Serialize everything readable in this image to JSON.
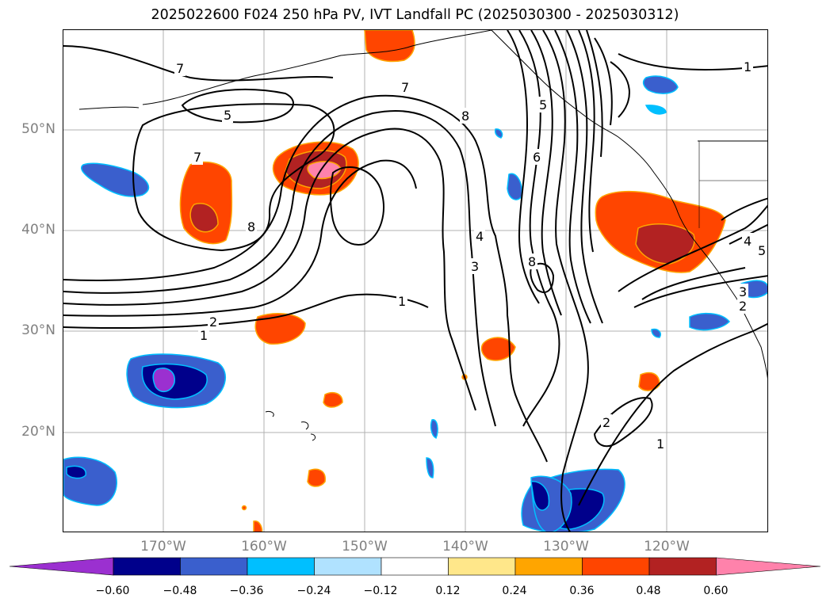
{
  "title": "2025022600 F024 250 hPa PV, IVT Landfall PC (2025030300 - 2025030312)",
  "lat_labels": [
    "50°N",
    "40°N",
    "30°N",
    "20°N"
  ],
  "lon_labels": [
    "170°W",
    "160°W",
    "150°W",
    "140°W",
    "130°W",
    "120°W"
  ],
  "contour_labels": [
    "7",
    "5",
    "7",
    "8",
    "2",
    "1",
    "7",
    "8",
    "5",
    "6",
    "4",
    "3",
    "8",
    "1",
    "1",
    "3",
    "2",
    "4",
    "5",
    "2",
    "1"
  ],
  "colorbar": {
    "colors": [
      "#9b30d0",
      "#00008b",
      "#3a5fcd",
      "#00bfff",
      "#b0e2ff",
      "#ffffff",
      "#ffe78a",
      "#ffa500",
      "#ff4500",
      "#b22222",
      "#ff82ab"
    ],
    "ticks": [
      "−0.60",
      "−0.48",
      "−0.36",
      "−0.24",
      "−0.12",
      "0.12",
      "0.24",
      "0.36",
      "0.48",
      "0.60"
    ]
  }
}
